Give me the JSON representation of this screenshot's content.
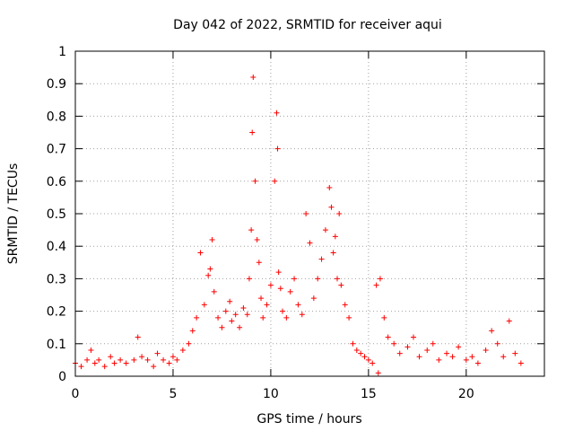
{
  "chart_data": {
    "type": "scatter",
    "title": "Day 042 of 2022, SRMTID for receiver aqui",
    "xlabel": "GPS time / hours",
    "ylabel": "SRMTID / TECUs",
    "xlim": [
      0,
      24
    ],
    "ylim": [
      0,
      1
    ],
    "x_ticks": [
      0,
      5,
      10,
      15,
      20
    ],
    "x_tick_labels": [
      "0",
      "5",
      "10",
      "15",
      "20"
    ],
    "y_ticks": [
      0,
      0.1,
      0.2,
      0.3,
      0.4,
      0.5,
      0.6,
      0.7,
      0.8,
      0.9,
      1
    ],
    "y_tick_labels": [
      "0",
      "0.1",
      "0.2",
      "0.3",
      "0.4",
      "0.5",
      "0.6",
      "0.7",
      "0.8",
      "0.9",
      "1"
    ],
    "grid": true,
    "marker": "+",
    "series": [
      {
        "name": "SRMTID",
        "color": "#ff0000",
        "x": [
          0.0,
          0.3,
          0.6,
          0.8,
          1.0,
          1.2,
          1.5,
          1.8,
          2.0,
          2.3,
          2.6,
          3.0,
          3.2,
          3.4,
          3.7,
          4.0,
          4.2,
          4.5,
          4.8,
          5.0,
          5.2,
          5.5,
          5.8,
          6.0,
          6.2,
          6.4,
          6.6,
          6.8,
          6.9,
          7.0,
          7.1,
          7.3,
          7.5,
          7.7,
          7.9,
          8.0,
          8.2,
          8.4,
          8.6,
          8.8,
          8.9,
          9.0,
          9.05,
          9.1,
          9.2,
          9.3,
          9.4,
          9.5,
          9.6,
          9.8,
          10.0,
          10.2,
          10.3,
          10.35,
          10.4,
          10.5,
          10.6,
          10.8,
          11.0,
          11.2,
          11.4,
          11.6,
          11.8,
          12.0,
          12.2,
          12.4,
          12.6,
          12.8,
          13.0,
          13.1,
          13.2,
          13.3,
          13.4,
          13.5,
          13.6,
          13.8,
          14.0,
          14.2,
          14.4,
          14.6,
          14.8,
          15.0,
          15.2,
          15.4,
          15.5,
          15.6,
          15.8,
          16.0,
          16.3,
          16.6,
          17.0,
          17.3,
          17.6,
          18.0,
          18.3,
          18.6,
          19.0,
          19.3,
          19.6,
          20.0,
          20.3,
          20.6,
          21.0,
          21.3,
          21.6,
          21.9,
          22.2,
          22.5,
          22.8
        ],
        "y": [
          0.04,
          0.03,
          0.05,
          0.08,
          0.04,
          0.05,
          0.03,
          0.06,
          0.04,
          0.05,
          0.04,
          0.05,
          0.12,
          0.06,
          0.05,
          0.03,
          0.07,
          0.05,
          0.04,
          0.06,
          0.05,
          0.08,
          0.1,
          0.14,
          0.18,
          0.38,
          0.22,
          0.31,
          0.33,
          0.42,
          0.26,
          0.18,
          0.15,
          0.2,
          0.23,
          0.17,
          0.19,
          0.15,
          0.21,
          0.19,
          0.3,
          0.45,
          0.75,
          0.92,
          0.6,
          0.42,
          0.35,
          0.24,
          0.18,
          0.22,
          0.28,
          0.6,
          0.81,
          0.7,
          0.32,
          0.27,
          0.2,
          0.18,
          0.26,
          0.3,
          0.22,
          0.19,
          0.5,
          0.41,
          0.24,
          0.3,
          0.36,
          0.45,
          0.58,
          0.52,
          0.38,
          0.43,
          0.3,
          0.5,
          0.28,
          0.22,
          0.18,
          0.1,
          0.08,
          0.07,
          0.06,
          0.05,
          0.04,
          0.28,
          0.01,
          0.3,
          0.18,
          0.12,
          0.1,
          0.07,
          0.09,
          0.12,
          0.06,
          0.08,
          0.1,
          0.05,
          0.07,
          0.06,
          0.09,
          0.05,
          0.06,
          0.04,
          0.08,
          0.14,
          0.1,
          0.06,
          0.17,
          0.07,
          0.04
        ]
      }
    ]
  }
}
